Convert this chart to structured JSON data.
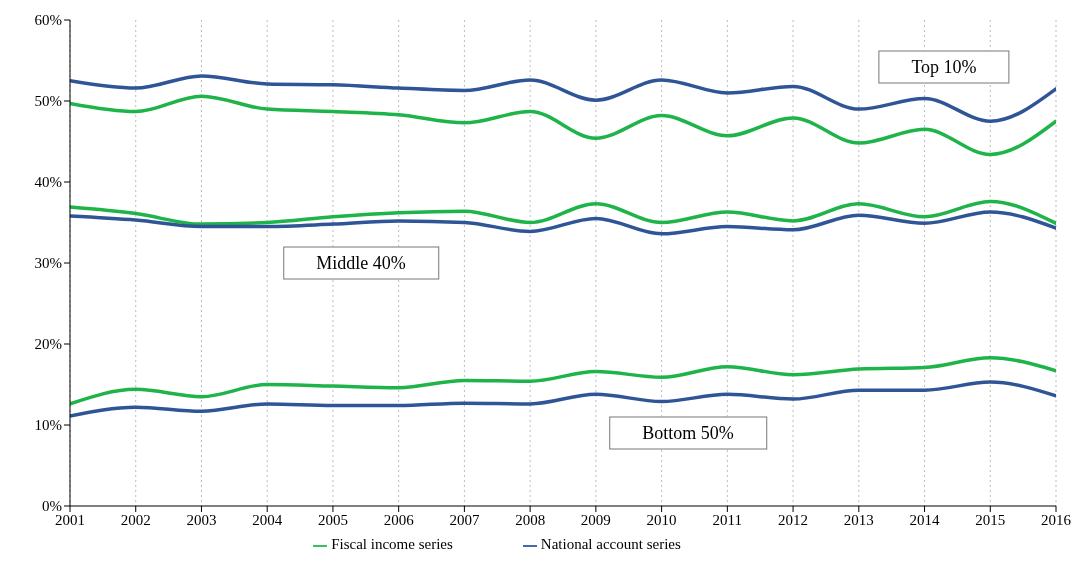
{
  "chart_data": {
    "type": "line",
    "x": [
      2001,
      2002,
      2003,
      2004,
      2005,
      2006,
      2007,
      2008,
      2009,
      2010,
      2011,
      2012,
      2013,
      2014,
      2015,
      2016
    ],
    "xlim": [
      2001,
      2016
    ],
    "xticks": [
      2001,
      2002,
      2003,
      2004,
      2005,
      2006,
      2007,
      2008,
      2009,
      2010,
      2011,
      2012,
      2013,
      2014,
      2015,
      2016
    ],
    "ylim": [
      0,
      60
    ],
    "yticks": [
      {
        "value": 0,
        "label": "0%"
      },
      {
        "value": 10,
        "label": "10%"
      },
      {
        "value": 20,
        "label": "20%"
      },
      {
        "value": 30,
        "label": "30%"
      },
      {
        "value": 40,
        "label": "40%"
      },
      {
        "value": 50,
        "label": "50%"
      },
      {
        "value": 60,
        "label": "60%"
      }
    ],
    "grid": "x",
    "legend": "bottom",
    "marker": "none",
    "line_style": "solid",
    "series": [
      {
        "name": "Fiscal income series",
        "color": "#1fb44a",
        "values": [
          49.7,
          48.7,
          50.6,
          49.0,
          48.7,
          48.3,
          47.3,
          48.7,
          45.4,
          48.2,
          45.7,
          47.9,
          44.8,
          46.5,
          43.4,
          47.5
        ]
      },
      {
        "name": "National account series",
        "color": "#2f5597",
        "values": [
          52.5,
          51.6,
          53.1,
          52.1,
          52.0,
          51.6,
          51.3,
          52.6,
          50.1,
          52.6,
          51.0,
          51.8,
          49.0,
          50.3,
          47.5,
          51.5
        ]
      },
      {
        "color": "#1fb44a",
        "values": [
          36.9,
          36.1,
          34.8,
          35.0,
          35.7,
          36.2,
          36.4,
          35.0,
          37.3,
          35.0,
          36.3,
          35.2,
          37.3,
          35.7,
          37.6,
          34.9
        ]
      },
      {
        "color": "#2f5597",
        "values": [
          35.8,
          35.3,
          34.5,
          34.5,
          34.8,
          35.2,
          35.0,
          33.9,
          35.5,
          33.6,
          34.5,
          34.1,
          35.9,
          34.9,
          36.3,
          34.3
        ]
      },
      {
        "color": "#1fb44a",
        "values": [
          12.6,
          14.4,
          13.5,
          15.0,
          14.8,
          14.6,
          15.5,
          15.4,
          16.6,
          15.9,
          17.2,
          16.2,
          16.9,
          17.1,
          18.3,
          16.7
        ]
      },
      {
        "color": "#2f5597",
        "values": [
          11.1,
          12.2,
          11.7,
          12.6,
          12.4,
          12.4,
          12.7,
          12.6,
          13.8,
          12.9,
          13.8,
          13.2,
          14.3,
          14.3,
          15.3,
          13.6
        ]
      }
    ],
    "annotations": [
      "Top 10%",
      "Middle 40%",
      "Bottom 50%"
    ]
  }
}
